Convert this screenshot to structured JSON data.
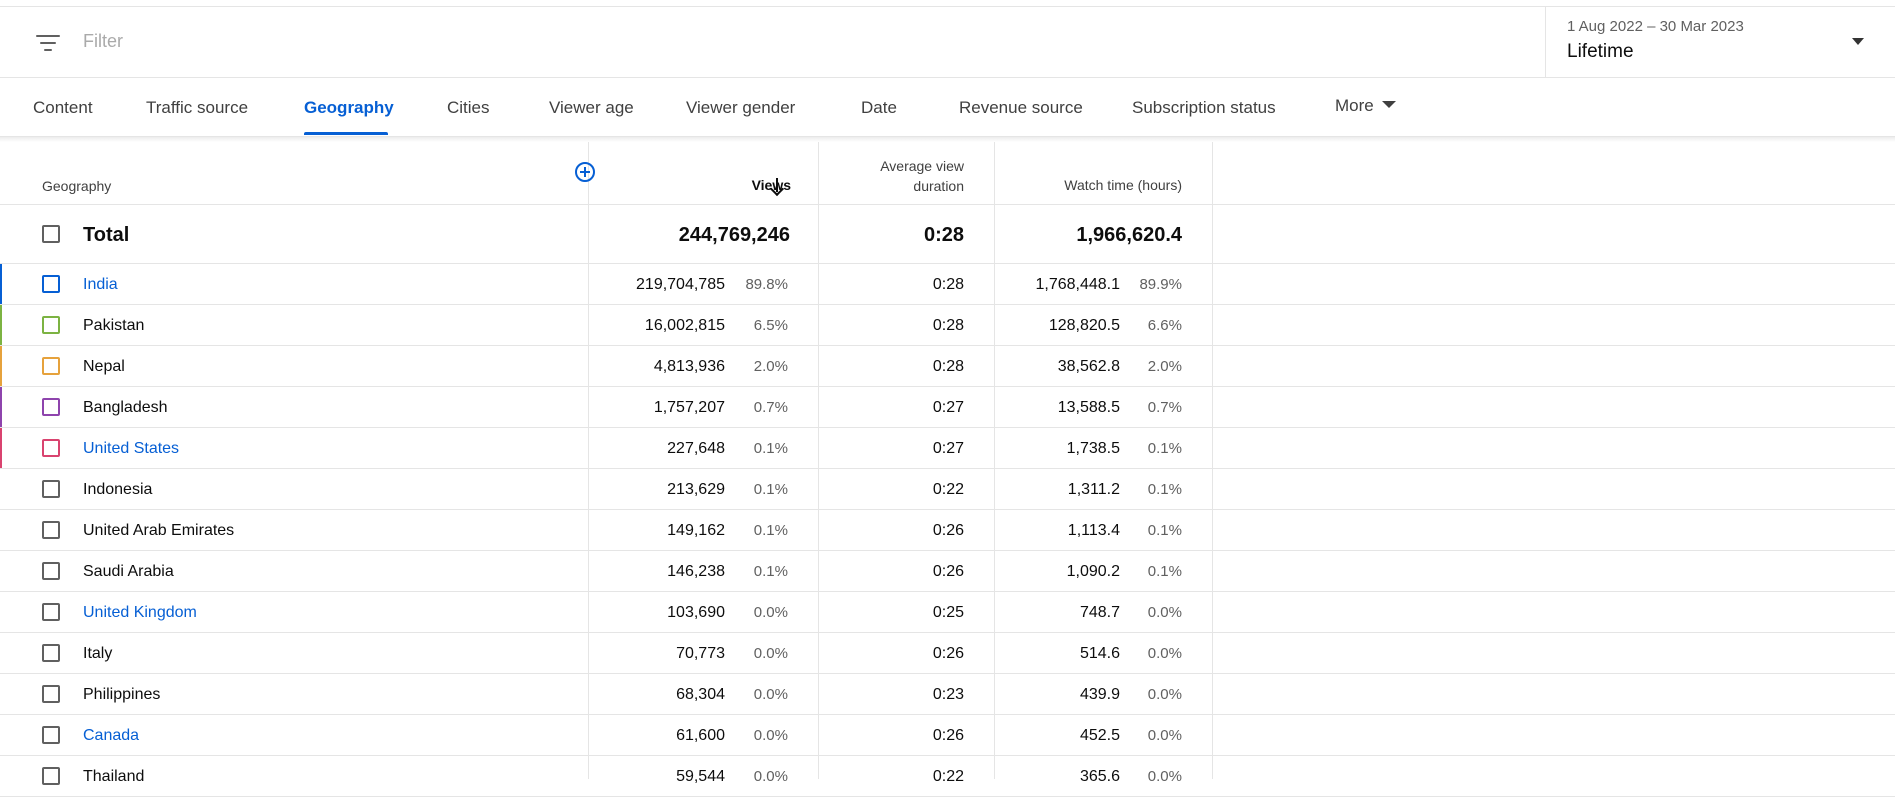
{
  "filter": {
    "placeholder": "Filter",
    "icon": "filter-icon"
  },
  "date_range": {
    "range": "1 Aug 2022 – 30 Mar 2023",
    "label": "Lifetime"
  },
  "tabs": [
    {
      "label": "Content"
    },
    {
      "label": "Traffic source"
    },
    {
      "label": "Geography",
      "active": true
    },
    {
      "label": "Cities"
    },
    {
      "label": "Viewer age"
    },
    {
      "label": "Viewer gender"
    },
    {
      "label": "Date"
    },
    {
      "label": "Revenue source"
    },
    {
      "label": "Subscription status"
    },
    {
      "label": "More"
    }
  ],
  "table": {
    "headers": {
      "geography": "Geography",
      "views": "Views",
      "avg_line1": "Average view",
      "avg_line2": "duration",
      "watch_time": "Watch time (hours)"
    },
    "total": {
      "label": "Total",
      "views": "244,769,246",
      "avg": "0:28",
      "watch": "1,966,620.4"
    },
    "rows": [
      {
        "name": "India",
        "link": true,
        "color": "#065fd4",
        "views": "219,704,785",
        "views_pct": "89.8%",
        "avg": "0:28",
        "watch": "1,768,448.1",
        "watch_pct": "89.9%"
      },
      {
        "name": "Pakistan",
        "link": false,
        "color": "#7cb342",
        "views": "16,002,815",
        "views_pct": "6.5%",
        "avg": "0:28",
        "watch": "128,820.5",
        "watch_pct": "6.6%"
      },
      {
        "name": "Nepal",
        "link": false,
        "color": "#e6a23c",
        "views": "4,813,936",
        "views_pct": "2.0%",
        "avg": "0:28",
        "watch": "38,562.8",
        "watch_pct": "2.0%"
      },
      {
        "name": "Bangladesh",
        "link": false,
        "color": "#8e44ad",
        "views": "1,757,207",
        "views_pct": "0.7%",
        "avg": "0:27",
        "watch": "13,588.5",
        "watch_pct": "0.7%"
      },
      {
        "name": "United States",
        "link": true,
        "color": "#d9436f",
        "views": "227,648",
        "views_pct": "0.1%",
        "avg": "0:27",
        "watch": "1,738.5",
        "watch_pct": "0.1%"
      },
      {
        "name": "Indonesia",
        "link": false,
        "color": "",
        "views": "213,629",
        "views_pct": "0.1%",
        "avg": "0:22",
        "watch": "1,311.2",
        "watch_pct": "0.1%"
      },
      {
        "name": "United Arab Emirates",
        "link": false,
        "color": "",
        "views": "149,162",
        "views_pct": "0.1%",
        "avg": "0:26",
        "watch": "1,113.4",
        "watch_pct": "0.1%"
      },
      {
        "name": "Saudi Arabia",
        "link": false,
        "color": "",
        "views": "146,238",
        "views_pct": "0.1%",
        "avg": "0:26",
        "watch": "1,090.2",
        "watch_pct": "0.1%"
      },
      {
        "name": "United Kingdom",
        "link": true,
        "color": "",
        "views": "103,690",
        "views_pct": "0.0%",
        "avg": "0:25",
        "watch": "748.7",
        "watch_pct": "0.0%"
      },
      {
        "name": "Italy",
        "link": false,
        "color": "",
        "views": "70,773",
        "views_pct": "0.0%",
        "avg": "0:26",
        "watch": "514.6",
        "watch_pct": "0.0%"
      },
      {
        "name": "Philippines",
        "link": false,
        "color": "",
        "views": "68,304",
        "views_pct": "0.0%",
        "avg": "0:23",
        "watch": "439.9",
        "watch_pct": "0.0%"
      },
      {
        "name": "Canada",
        "link": true,
        "color": "",
        "views": "61,600",
        "views_pct": "0.0%",
        "avg": "0:26",
        "watch": "452.5",
        "watch_pct": "0.0%"
      },
      {
        "name": "Thailand",
        "link": false,
        "color": "",
        "views": "59,544",
        "views_pct": "0.0%",
        "avg": "0:22",
        "watch": "365.6",
        "watch_pct": "0.0%"
      }
    ]
  }
}
